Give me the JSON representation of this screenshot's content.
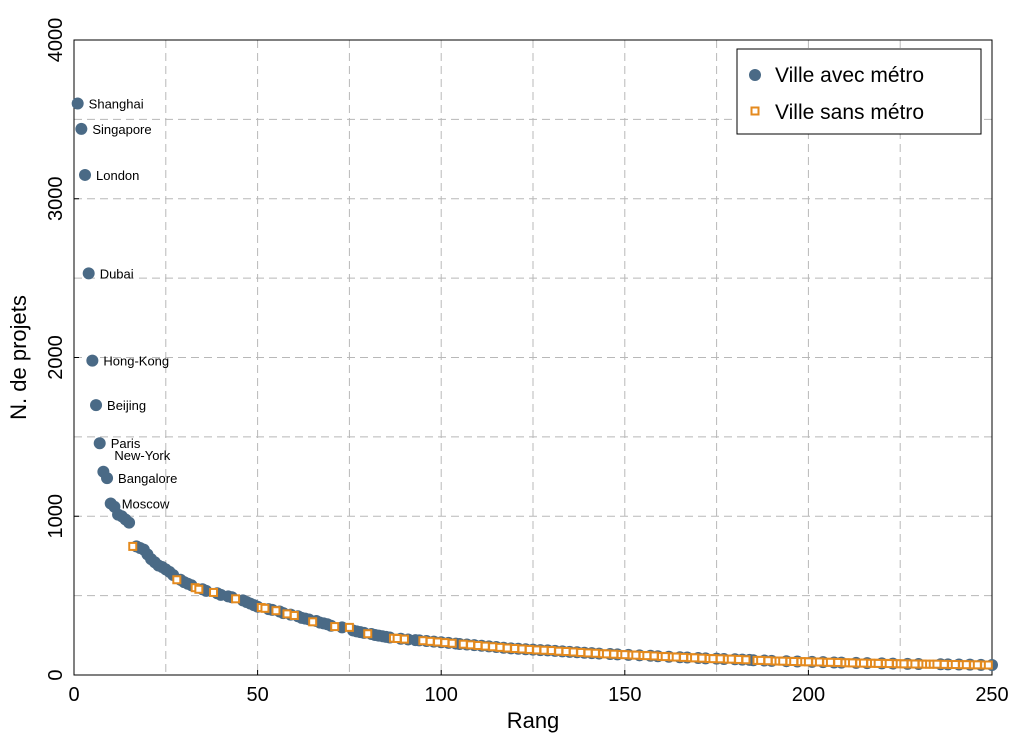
{
  "chart_data": {
    "type": "scatter",
    "xlabel": "Rang",
    "ylabel": "N. de projets",
    "xlim": [
      0,
      250
    ],
    "ylim": [
      0,
      4000
    ],
    "x_ticks": [
      0,
      50,
      100,
      150,
      200,
      250
    ],
    "y_ticks": [
      0,
      1000,
      2000,
      3000,
      4000
    ],
    "grid": true,
    "legend_position": "top-right",
    "series": [
      {
        "name": "Ville avec métro",
        "marker": "circle",
        "color": "#4a6a86",
        "points": [
          [
            1,
            3600
          ],
          [
            2,
            3440
          ],
          [
            3,
            3150
          ],
          [
            4,
            2530
          ],
          [
            5,
            1980
          ],
          [
            6,
            1700
          ],
          [
            7,
            1460
          ],
          [
            8,
            1280
          ],
          [
            9,
            1240
          ],
          [
            10,
            1080
          ],
          [
            11,
            1060
          ],
          [
            12,
            1010
          ],
          [
            13,
            1000
          ],
          [
            14,
            980
          ],
          [
            15,
            960
          ],
          [
            17,
            810
          ],
          [
            18,
            800
          ],
          [
            19,
            790
          ],
          [
            20,
            760
          ],
          [
            21,
            730
          ],
          [
            22,
            710
          ],
          [
            23,
            690
          ],
          [
            24,
            680
          ],
          [
            25,
            665
          ],
          [
            26,
            650
          ],
          [
            27,
            630
          ],
          [
            29,
            600
          ],
          [
            30,
            585
          ],
          [
            31,
            575
          ],
          [
            32,
            565
          ],
          [
            35,
            540
          ],
          [
            36,
            530
          ],
          [
            39,
            515
          ],
          [
            40,
            505
          ],
          [
            42,
            495
          ],
          [
            43,
            490
          ],
          [
            46,
            470
          ],
          [
            47,
            460
          ],
          [
            48,
            450
          ],
          [
            49,
            440
          ],
          [
            50,
            430
          ],
          [
            53,
            415
          ],
          [
            54,
            410
          ],
          [
            56,
            400
          ],
          [
            57,
            390
          ],
          [
            59,
            380
          ],
          [
            61,
            370
          ],
          [
            62,
            360
          ],
          [
            63,
            355
          ],
          [
            64,
            350
          ],
          [
            66,
            340
          ],
          [
            67,
            330
          ],
          [
            68,
            325
          ],
          [
            69,
            320
          ],
          [
            70,
            310
          ],
          [
            73,
            300
          ],
          [
            76,
            280
          ],
          [
            77,
            275
          ],
          [
            78,
            270
          ],
          [
            79,
            265
          ],
          [
            81,
            258
          ],
          [
            82,
            252
          ],
          [
            83,
            248
          ],
          [
            84,
            244
          ],
          [
            85,
            240
          ],
          [
            86,
            236
          ],
          [
            89,
            228
          ],
          [
            91,
            224
          ],
          [
            93,
            220
          ],
          [
            94,
            218
          ],
          [
            96,
            214
          ],
          [
            98,
            210
          ],
          [
            100,
            206
          ],
          [
            102,
            202
          ],
          [
            104,
            198
          ],
          [
            105,
            195
          ],
          [
            107,
            192
          ],
          [
            109,
            188
          ],
          [
            111,
            184
          ],
          [
            113,
            180
          ],
          [
            115,
            176
          ],
          [
            117,
            172
          ],
          [
            119,
            168
          ],
          [
            121,
            165
          ],
          [
            123,
            162
          ],
          [
            125,
            160
          ],
          [
            127,
            157
          ],
          [
            129,
            155
          ],
          [
            131,
            152
          ],
          [
            133,
            149
          ],
          [
            135,
            146
          ],
          [
            137,
            143
          ],
          [
            139,
            140
          ],
          [
            141,
            138
          ],
          [
            143,
            135
          ],
          [
            146,
            132
          ],
          [
            148,
            130
          ],
          [
            151,
            127
          ],
          [
            154,
            124
          ],
          [
            157,
            121
          ],
          [
            159,
            118
          ],
          [
            162,
            115
          ],
          [
            165,
            112
          ],
          [
            167,
            110
          ],
          [
            170,
            107
          ],
          [
            172,
            105
          ],
          [
            175,
            103
          ],
          [
            177,
            101
          ],
          [
            180,
            99
          ],
          [
            182,
            97
          ],
          [
            184,
            95
          ],
          [
            185,
            93
          ],
          [
            188,
            91
          ],
          [
            190,
            89
          ],
          [
            194,
            87
          ],
          [
            197,
            85
          ],
          [
            201,
            83
          ],
          [
            204,
            81
          ],
          [
            207,
            79
          ],
          [
            209,
            78
          ],
          [
            213,
            76
          ],
          [
            216,
            75
          ],
          [
            220,
            73
          ],
          [
            223,
            72
          ],
          [
            227,
            70
          ],
          [
            230,
            69
          ],
          [
            236,
            68
          ],
          [
            238,
            67
          ],
          [
            241,
            66
          ],
          [
            244,
            65
          ],
          [
            247,
            64
          ],
          [
            250,
            63
          ]
        ]
      },
      {
        "name": "Ville sans métro",
        "marker": "square",
        "color": "#e48a1e",
        "points": [
          [
            16,
            810
          ],
          [
            28,
            600
          ],
          [
            33,
            550
          ],
          [
            34,
            540
          ],
          [
            38,
            520
          ],
          [
            44,
            480
          ],
          [
            51,
            425
          ],
          [
            52,
            420
          ],
          [
            55,
            405
          ],
          [
            58,
            385
          ],
          [
            60,
            375
          ],
          [
            65,
            335
          ],
          [
            71,
            305
          ],
          [
            75,
            300
          ],
          [
            80,
            260
          ],
          [
            87,
            232
          ],
          [
            88,
            230
          ],
          [
            90,
            226
          ],
          [
            95,
            216
          ],
          [
            97,
            212
          ],
          [
            99,
            208
          ],
          [
            101,
            204
          ],
          [
            103,
            200
          ],
          [
            106,
            194
          ],
          [
            108,
            190
          ],
          [
            110,
            186
          ],
          [
            112,
            182
          ],
          [
            114,
            178
          ],
          [
            116,
            174
          ],
          [
            118,
            170
          ],
          [
            120,
            167
          ],
          [
            122,
            164
          ],
          [
            124,
            161
          ],
          [
            126,
            158
          ],
          [
            128,
            156
          ],
          [
            130,
            154
          ],
          [
            132,
            150
          ],
          [
            134,
            148
          ],
          [
            136,
            145
          ],
          [
            138,
            142
          ],
          [
            140,
            139
          ],
          [
            142,
            137
          ],
          [
            144,
            134
          ],
          [
            145,
            133
          ],
          [
            147,
            131
          ],
          [
            149,
            129
          ],
          [
            150,
            128
          ],
          [
            152,
            126
          ],
          [
            153,
            125
          ],
          [
            155,
            123
          ],
          [
            156,
            122
          ],
          [
            158,
            120
          ],
          [
            160,
            117
          ],
          [
            161,
            116
          ],
          [
            163,
            114
          ],
          [
            164,
            113
          ],
          [
            166,
            111
          ],
          [
            168,
            109
          ],
          [
            169,
            108
          ],
          [
            171,
            106
          ],
          [
            173,
            104
          ],
          [
            174,
            103
          ],
          [
            176,
            102
          ],
          [
            178,
            100
          ],
          [
            179,
            100
          ],
          [
            181,
            98
          ],
          [
            183,
            96
          ],
          [
            186,
            92
          ],
          [
            187,
            92
          ],
          [
            189,
            90
          ],
          [
            191,
            88
          ],
          [
            192,
            88
          ],
          [
            193,
            87
          ],
          [
            195,
            86
          ],
          [
            196,
            85
          ],
          [
            198,
            84
          ],
          [
            199,
            84
          ],
          [
            200,
            83
          ],
          [
            202,
            82
          ],
          [
            203,
            82
          ],
          [
            205,
            80
          ],
          [
            206,
            80
          ],
          [
            208,
            79
          ],
          [
            210,
            77
          ],
          [
            211,
            77
          ],
          [
            212,
            76
          ],
          [
            214,
            75
          ],
          [
            215,
            75
          ],
          [
            217,
            74
          ],
          [
            218,
            74
          ],
          [
            219,
            73
          ],
          [
            221,
            73
          ],
          [
            222,
            72
          ],
          [
            224,
            71
          ],
          [
            225,
            71
          ],
          [
            226,
            70
          ],
          [
            228,
            70
          ],
          [
            229,
            69
          ],
          [
            231,
            69
          ],
          [
            232,
            68
          ],
          [
            233,
            68
          ],
          [
            234,
            68
          ],
          [
            235,
            68
          ],
          [
            237,
            67
          ],
          [
            239,
            66
          ],
          [
            240,
            66
          ],
          [
            242,
            65
          ],
          [
            243,
            65
          ],
          [
            245,
            64
          ],
          [
            246,
            64
          ],
          [
            248,
            63
          ],
          [
            249,
            63
          ]
        ]
      }
    ],
    "annotations": [
      {
        "text": "Shanghai",
        "x": 1,
        "y": 3600
      },
      {
        "text": "Singapore",
        "x": 2,
        "y": 3440
      },
      {
        "text": "London",
        "x": 3,
        "y": 3150
      },
      {
        "text": "Dubai",
        "x": 4,
        "y": 2530
      },
      {
        "text": "Hong-Kong",
        "x": 5,
        "y": 1980
      },
      {
        "text": "Beijing",
        "x": 6,
        "y": 1700
      },
      {
        "text": "Paris",
        "x": 7,
        "y": 1460
      },
      {
        "text": "New-York",
        "x": 8,
        "y": 1280
      },
      {
        "text": "Bangalore",
        "x": 9,
        "y": 1240
      },
      {
        "text": "Moscow",
        "x": 10,
        "y": 1080
      }
    ]
  }
}
